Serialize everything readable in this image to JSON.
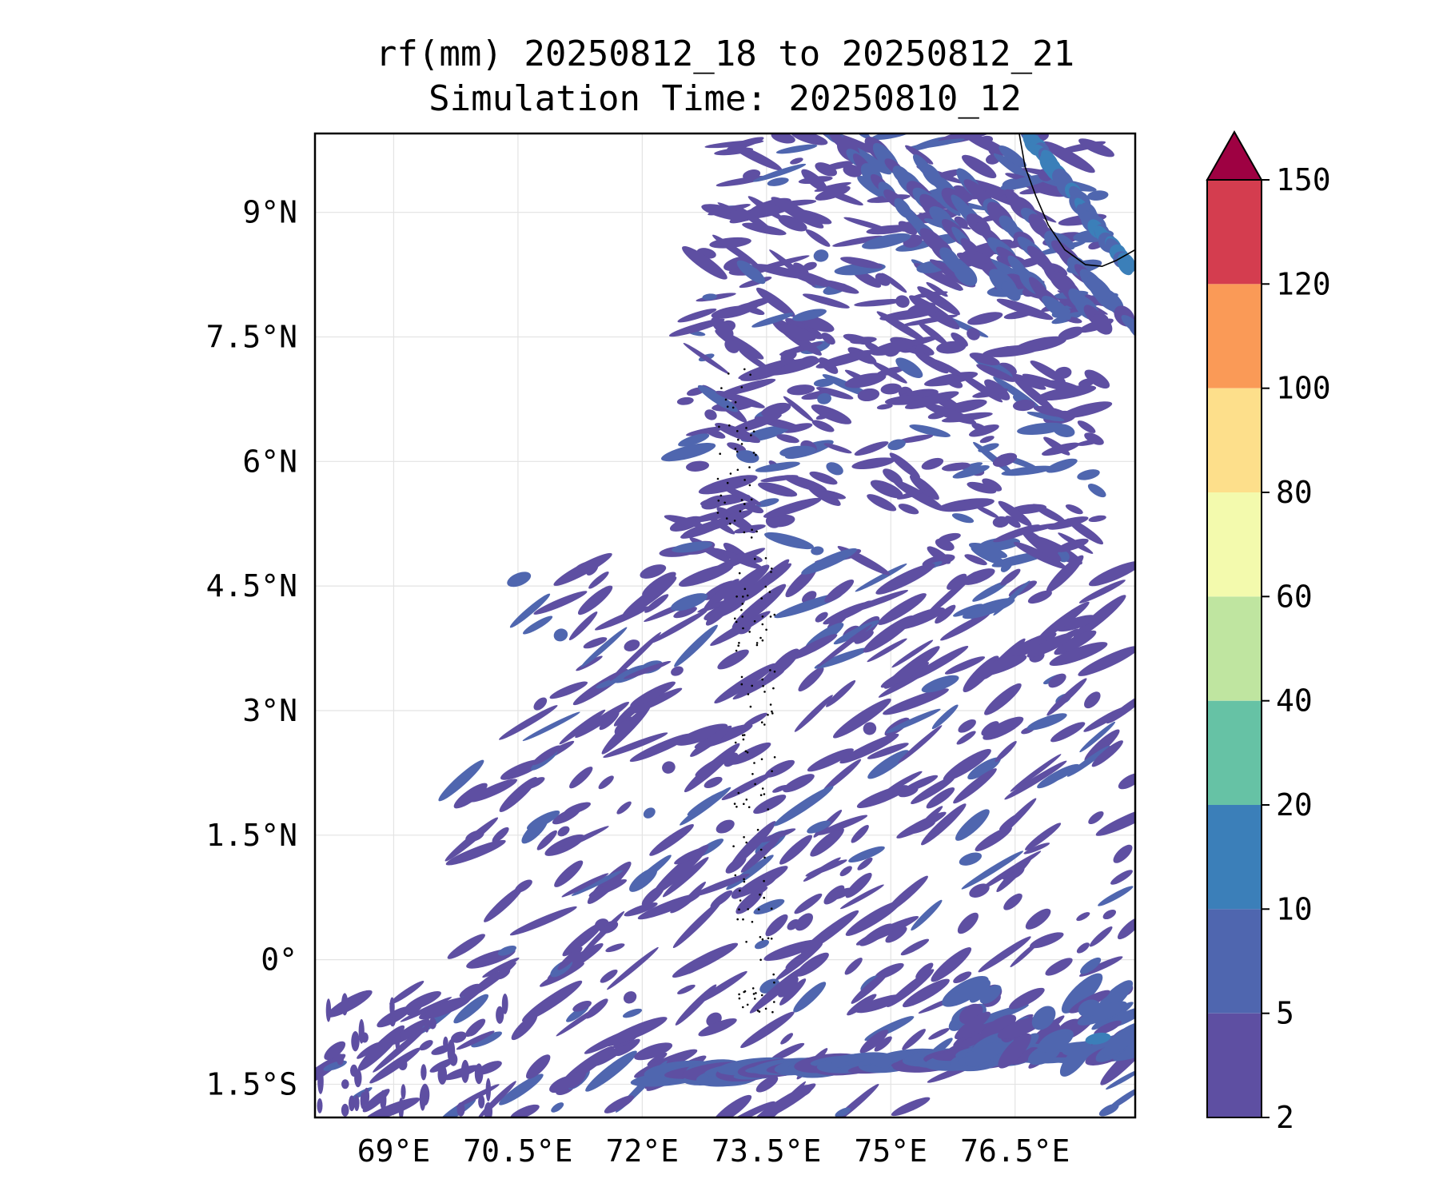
{
  "chart_data": {
    "type": "heatmap",
    "title": "rf(mm) 20250812_18 to 20250812_21",
    "subtitle": "Simulation Time: 20250810_12",
    "x_ticks": [
      {
        "value": 69.0,
        "label": "69°E"
      },
      {
        "value": 70.5,
        "label": "70.5°E"
      },
      {
        "value": 72.0,
        "label": "72°E"
      },
      {
        "value": 73.5,
        "label": "73.5°E"
      },
      {
        "value": 75.0,
        "label": "75°E"
      },
      {
        "value": 76.5,
        "label": "76.5°E"
      }
    ],
    "y_ticks": [
      {
        "value": 9.0,
        "label": "9°N"
      },
      {
        "value": 7.5,
        "label": "7.5°N"
      },
      {
        "value": 6.0,
        "label": "6°N"
      },
      {
        "value": 4.5,
        "label": "4.5°N"
      },
      {
        "value": 3.0,
        "label": "3°N"
      },
      {
        "value": 1.5,
        "label": "1.5°N"
      },
      {
        "value": 0.0,
        "label": "0°"
      },
      {
        "value": -1.5,
        "label": "1.5°S"
      }
    ],
    "xlim": [
      68.05,
      77.95
    ],
    "ylim": [
      -1.9,
      9.95
    ],
    "grid": true,
    "colorbar": {
      "levels": [
        2,
        5,
        10,
        20,
        40,
        60,
        80,
        100,
        120,
        150
      ],
      "labels": [
        "2",
        "5",
        "10",
        "20",
        "40",
        "60",
        "80",
        "100",
        "120",
        "150"
      ],
      "colors": [
        "#5e4fa2",
        "#4f66af",
        "#3b7fb9",
        "#66c2a5",
        "#bfe5a0",
        "#f3faad",
        "#fddf8b",
        "#fa9a57",
        "#d43d4f"
      ],
      "extend_color": "#9e0142",
      "extend": "max"
    }
  }
}
